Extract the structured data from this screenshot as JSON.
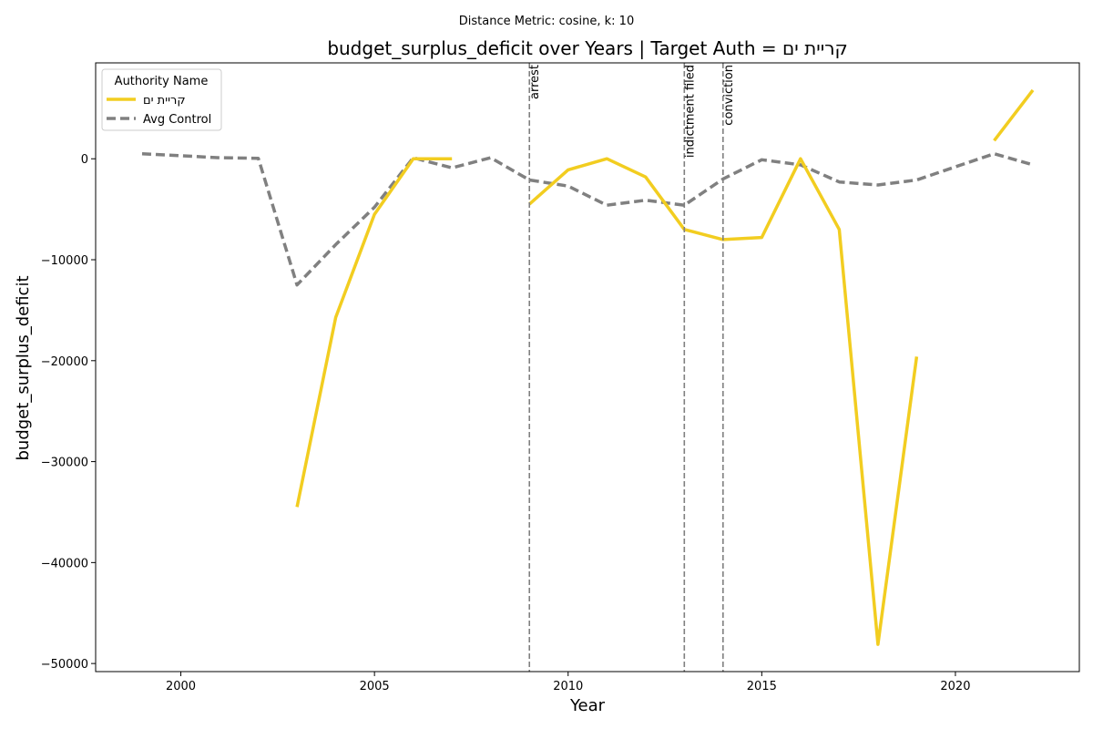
{
  "chart_data": {
    "type": "line",
    "suptitle": "Distance Metric: cosine, k: 10",
    "title": "budget_surplus_deficit over Years | Target Auth = קריית ים",
    "xlabel": "Year",
    "ylabel": "budget_surplus_deficit",
    "xlim": [
      1997.8,
      2023.2
    ],
    "ylim": [
      -50800,
      9500
    ],
    "xticks": [
      2000,
      2005,
      2010,
      2015,
      2020
    ],
    "yticks": [
      0,
      -10000,
      -20000,
      -30000,
      -40000,
      -50000
    ],
    "ytick_labels": [
      "0",
      "−10000",
      "−20000",
      "−30000",
      "−40000",
      "−50000"
    ],
    "grid": false,
    "legend": {
      "title": "Authority Name",
      "placement": "top-left"
    },
    "series": [
      {
        "name": "קריית ים",
        "color": "#f2cd20",
        "style": "solid",
        "segments": [
          [
            [
              2003,
              -34500
            ],
            [
              2004,
              -15700
            ],
            [
              2005,
              -5500
            ],
            [
              2006,
              0
            ],
            [
              2007,
              0
            ]
          ],
          [
            [
              2009,
              -4500
            ],
            [
              2010,
              -1100
            ],
            [
              2011,
              0
            ],
            [
              2012,
              -1800
            ],
            [
              2013,
              -7000
            ],
            [
              2014,
              -8000
            ],
            [
              2015,
              -7800
            ],
            [
              2016,
              0
            ],
            [
              2017,
              -7000
            ],
            [
              2018,
              -48100
            ],
            [
              2019,
              -19600
            ]
          ],
          [
            [
              2021,
              1800
            ],
            [
              2022,
              6800
            ]
          ]
        ]
      },
      {
        "name": "Avg Control",
        "color": "#808080",
        "style": "dashed",
        "segments": [
          [
            [
              1999,
              500
            ],
            [
              2000,
              300
            ],
            [
              2001,
              100
            ],
            [
              2002,
              50
            ],
            [
              2003,
              -12500
            ],
            [
              2004,
              -8500
            ],
            [
              2005,
              -4800
            ],
            [
              2006,
              100
            ],
            [
              2007,
              -900
            ],
            [
              2008,
              100
            ],
            [
              2009,
              -2100
            ],
            [
              2010,
              -2700
            ],
            [
              2011,
              -4600
            ],
            [
              2012,
              -4100
            ],
            [
              2013,
              -4600
            ],
            [
              2014,
              -2000
            ],
            [
              2015,
              -100
            ],
            [
              2016,
              -600
            ],
            [
              2017,
              -2300
            ],
            [
              2018,
              -2600
            ],
            [
              2019,
              -2100
            ],
            [
              2020,
              -800
            ],
            [
              2021,
              500
            ],
            [
              2022,
              -600
            ]
          ]
        ]
      }
    ],
    "events": [
      {
        "year": 2009,
        "label": "arrest"
      },
      {
        "year": 2013,
        "label": "indictment filed"
      },
      {
        "year": 2014,
        "label": "conviction"
      }
    ]
  }
}
